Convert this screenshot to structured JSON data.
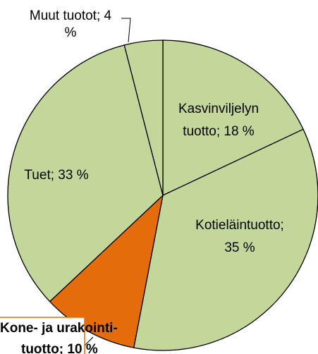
{
  "chart_data": {
    "type": "pie",
    "categories": [
      "Kasvinviljelyn tuotto",
      "Kotieläintuotto",
      "Kone- ja urakointituotto",
      "Tuet",
      "Muut tuotot"
    ],
    "values": [
      18,
      35,
      10,
      33,
      4
    ],
    "labels": [
      [
        "Kasvinviljelyn",
        "tuotto; 18 %"
      ],
      [
        "Kotieläintuotto;",
        "35 %"
      ],
      [
        "Kone- ja urakointi-",
        "tuotto; 10 %"
      ],
      [
        "Tuet; 33 %"
      ],
      [
        "Muut tuotot; 4",
        "%"
      ]
    ],
    "colors": [
      "#c4d79b",
      "#c4d79b",
      "#e46c0a",
      "#c4d79b",
      "#c4d79b"
    ]
  }
}
